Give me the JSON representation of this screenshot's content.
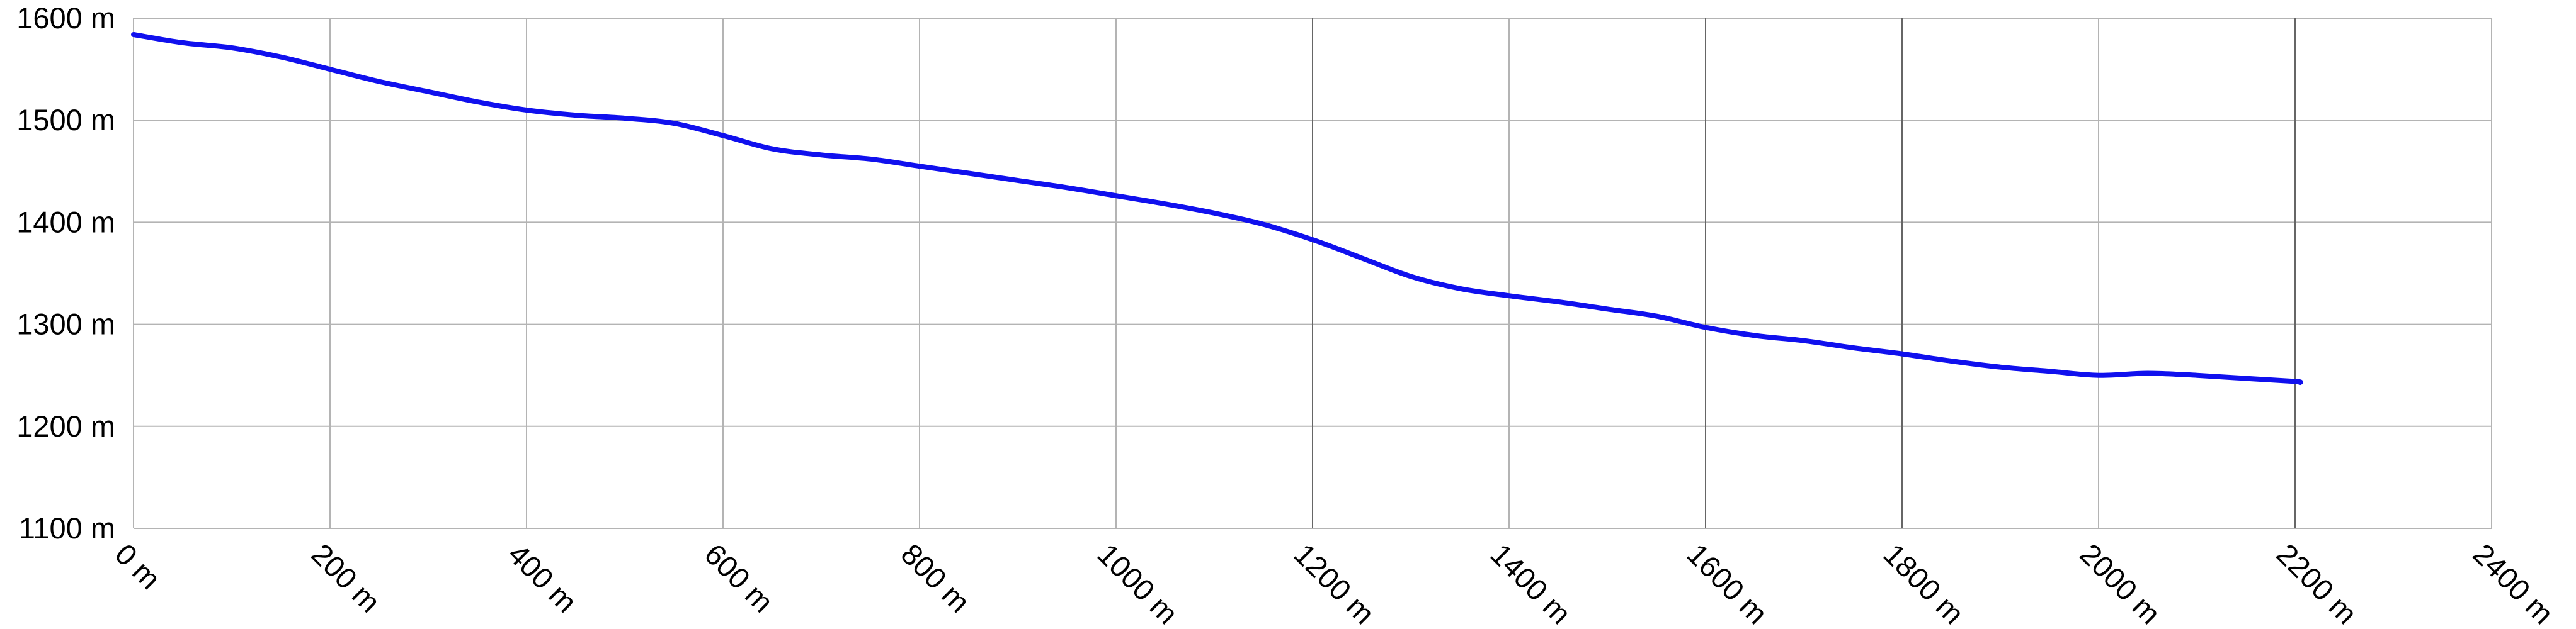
{
  "chart_data": {
    "type": "line",
    "title": "",
    "xlabel": "",
    "ylabel": "",
    "xlim": [
      0,
      2400
    ],
    "ylim": [
      1100,
      1600
    ],
    "grid": true,
    "x_ticks": [
      0,
      200,
      400,
      600,
      800,
      1000,
      1200,
      1400,
      1600,
      1800,
      2000,
      2200,
      2400
    ],
    "y_ticks": [
      1100,
      1200,
      1300,
      1400,
      1500,
      1600
    ],
    "x_tick_labels": [
      "0 m",
      "200 m",
      "400 m",
      "600 m",
      "800 m",
      "1000 m",
      "1200 m",
      "1400 m",
      "1600 m",
      "1800 m",
      "2000 m",
      "2200 m",
      "2400 m"
    ],
    "y_tick_labels": [
      "1100 m",
      "1200 m",
      "1300 m",
      "1400 m",
      "1500 m",
      "1600 m"
    ],
    "colors": {
      "line": "#1010ee",
      "grid": "#b4b4b4",
      "grid_dark": "#666666",
      "text": "#000000"
    },
    "series": [
      {
        "values": [
          [
            0,
            1584
          ],
          [
            50,
            1576
          ],
          [
            100,
            1571
          ],
          [
            150,
            1562
          ],
          [
            200,
            1550
          ],
          [
            250,
            1538
          ],
          [
            300,
            1528
          ],
          [
            350,
            1518
          ],
          [
            400,
            1510
          ],
          [
            450,
            1505
          ],
          [
            500,
            1502
          ],
          [
            550,
            1497
          ],
          [
            600,
            1485
          ],
          [
            650,
            1472
          ],
          [
            700,
            1466
          ],
          [
            750,
            1462
          ],
          [
            800,
            1455
          ],
          [
            850,
            1448
          ],
          [
            900,
            1441
          ],
          [
            950,
            1434
          ],
          [
            1000,
            1426
          ],
          [
            1050,
            1418
          ],
          [
            1100,
            1409
          ],
          [
            1150,
            1398
          ],
          [
            1200,
            1383
          ],
          [
            1250,
            1365
          ],
          [
            1300,
            1347
          ],
          [
            1350,
            1335
          ],
          [
            1400,
            1328
          ],
          [
            1450,
            1322
          ],
          [
            1500,
            1315
          ],
          [
            1550,
            1308
          ],
          [
            1600,
            1297
          ],
          [
            1650,
            1289
          ],
          [
            1700,
            1284
          ],
          [
            1750,
            1277
          ],
          [
            1800,
            1271
          ],
          [
            1850,
            1264
          ],
          [
            1900,
            1258
          ],
          [
            1950,
            1254
          ],
          [
            2000,
            1250
          ],
          [
            2050,
            1252
          ],
          [
            2100,
            1250
          ],
          [
            2150,
            1247
          ],
          [
            2200,
            1244
          ],
          [
            2205,
            1243
          ]
        ]
      }
    ]
  }
}
